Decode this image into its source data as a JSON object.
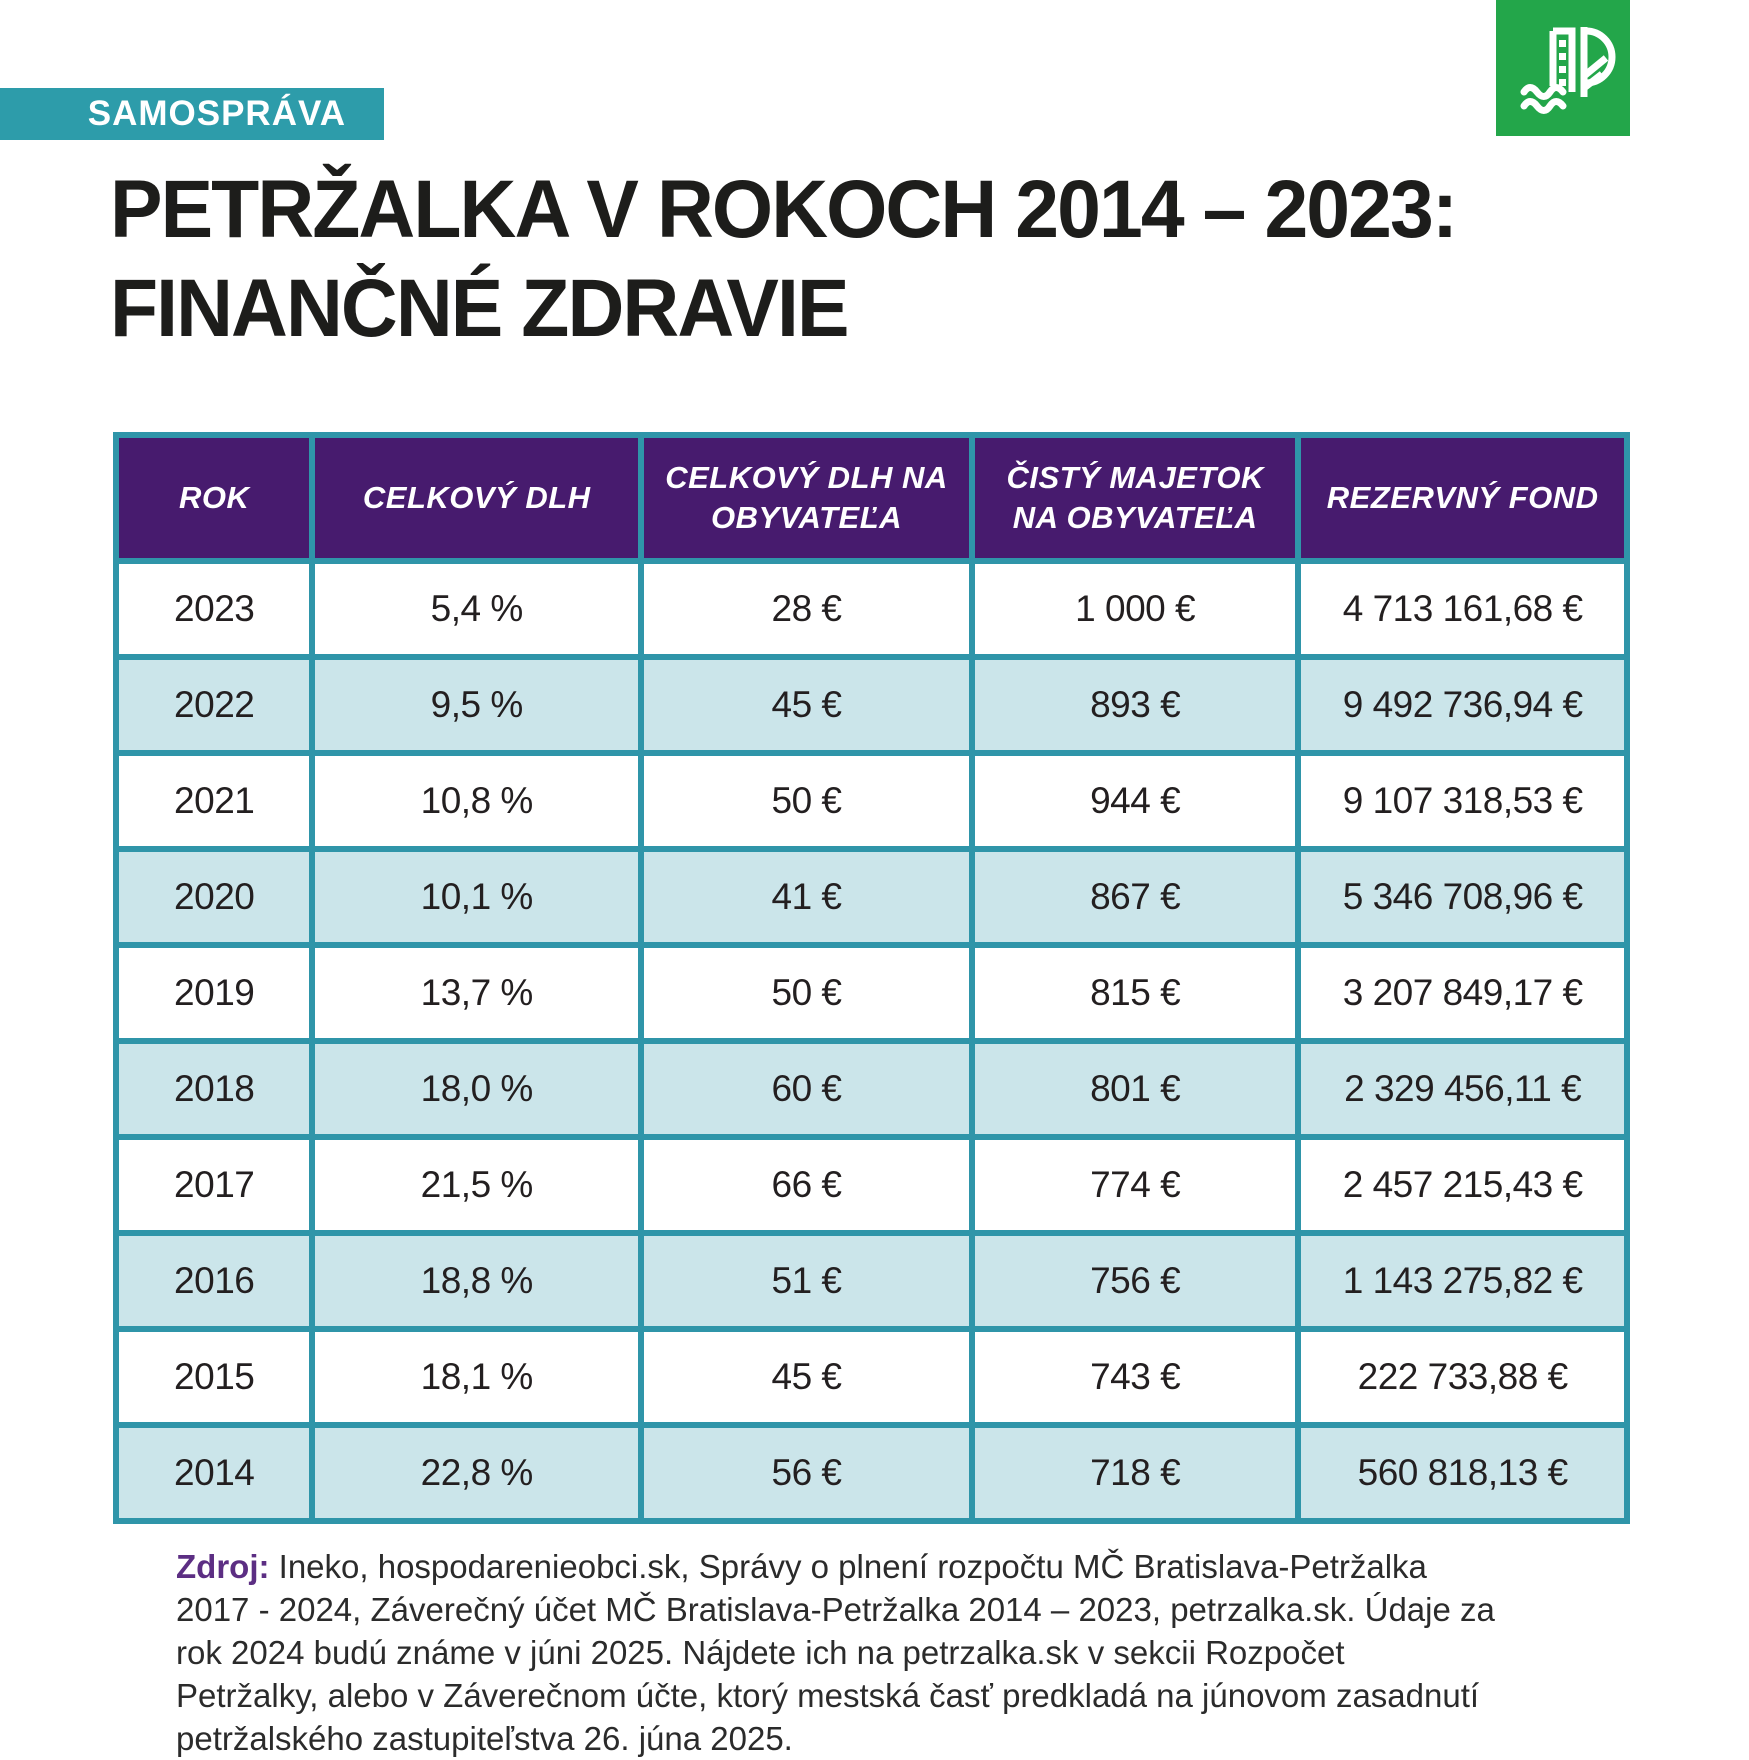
{
  "badge": {
    "label": "SAMOSPRÁVA"
  },
  "logo": {
    "icon": "petrzalka-p-tree-water-icon"
  },
  "title": {
    "line1": "PETRŽALKA V ROKOCH 2014 – 2023:",
    "line2": "FINANČNÉ ZDRAVIE"
  },
  "chart_data": {
    "type": "table",
    "title": "PETRŽALKA V ROKOCH 2014 – 2023: FINANČNÉ ZDRAVIE",
    "columns": [
      "ROK",
      "CELKOVÝ DLH",
      "CELKOVÝ DLH NA OBYVATEĽA",
      "ČISTÝ MAJETOK NA OBYVATEĽA",
      "REZERVNÝ FOND"
    ],
    "rows": [
      [
        "2023",
        "5,4 %",
        "28 €",
        "1 000 €",
        "4 713 161,68 €"
      ],
      [
        "2022",
        "9,5 %",
        "45 €",
        "893 €",
        "9 492 736,94 €"
      ],
      [
        "2021",
        "10,8 %",
        "50 €",
        "944 €",
        "9 107 318,53 €"
      ],
      [
        "2020",
        "10,1 %",
        "41 €",
        "867 €",
        "5 346 708,96 €"
      ],
      [
        "2019",
        "13,7 %",
        "50 €",
        "815 €",
        "3 207 849,17 €"
      ],
      [
        "2018",
        "18,0 %",
        "60 €",
        "801 €",
        "2 329 456,11 €"
      ],
      [
        "2017",
        "21,5 %",
        "66 €",
        "774 €",
        "2 457 215,43 €"
      ],
      [
        "2016",
        "18,8 %",
        "51 €",
        "756 €",
        "1 143 275,82 €"
      ],
      [
        "2015",
        "18,1 %",
        "45 €",
        "743 €",
        "222 733,88 €"
      ],
      [
        "2014",
        "22,8 %",
        "56 €",
        "718 €",
        "560 818,13 €"
      ]
    ]
  },
  "footer": {
    "source_label": "Zdroj:",
    "source_text": " Ineko, hospodarenieobci.sk, Správy o plnení rozpočtu MČ Bratislava-Petržalka 2017 - 2024, Záverečný účet MČ Bratislava-Petržalka 2014 – 2023, petrzalka.sk. Údaje za rok 2024 budú známe v júni 2025. Nájdete ich na petrzalka.sk v sekcii Rozpočet Petržalky, alebo v Záverečnom účte, ktorý mestská časť predkladá na júnovom zasadnutí petržalského zastupiteľstva 26. júna 2025."
  },
  "colors": {
    "badge_teal": "#2d9caa",
    "border_teal": "#2f95a9",
    "header_purple": "#471b6e",
    "row_alt_blue": "#cbe5ea",
    "logo_green": "#23a64a",
    "title_black": "#1d1d1b",
    "source_purple": "#5c2e83"
  }
}
